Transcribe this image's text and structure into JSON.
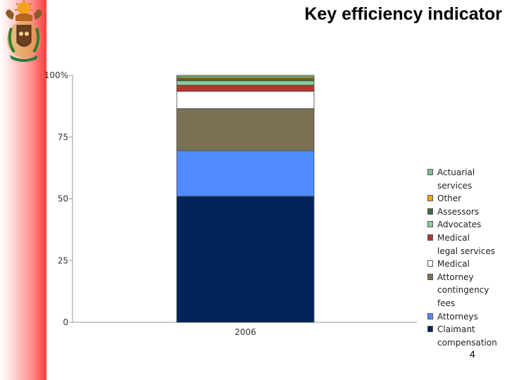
{
  "slide": {
    "title": "Key efficiency indicator",
    "page_number": "4",
    "logo_icon": "coat-of-arms"
  },
  "chart_data": {
    "type": "bar",
    "stacked": true,
    "categories": [
      "2006"
    ],
    "y_tick_labels": [
      "0",
      "25",
      "50",
      "75",
      "100%"
    ],
    "ylim": [
      0,
      100
    ],
    "grid": false,
    "legend_placement": "right",
    "series": [
      {
        "name": "Claimant\ncompensation",
        "values": [
          51
        ],
        "color": "#02245a"
      },
      {
        "name": "Attorneys",
        "values": [
          18.5
        ],
        "color": "#4f8bff"
      },
      {
        "name": "Attorney\ncontingency fees",
        "values": [
          17
        ],
        "color": "#7a7155"
      },
      {
        "name": "Medical",
        "values": [
          7
        ],
        "color": "#ffffff"
      },
      {
        "name": "Medical\nlegal services",
        "values": [
          2.5
        ],
        "color": "#b6352c"
      },
      {
        "name": "Advocates",
        "values": [
          1.8
        ],
        "color": "#88cc99"
      },
      {
        "name": "Assessors",
        "values": [
          0.9
        ],
        "color": "#3f6b3a"
      },
      {
        "name": "Other",
        "values": [
          0.6
        ],
        "color": "#f2a50c"
      },
      {
        "name": "Actuarial services",
        "values": [
          0.7
        ],
        "color": "#7cc493"
      }
    ],
    "legend_order": [
      8,
      7,
      6,
      5,
      4,
      3,
      2,
      1,
      0
    ]
  }
}
